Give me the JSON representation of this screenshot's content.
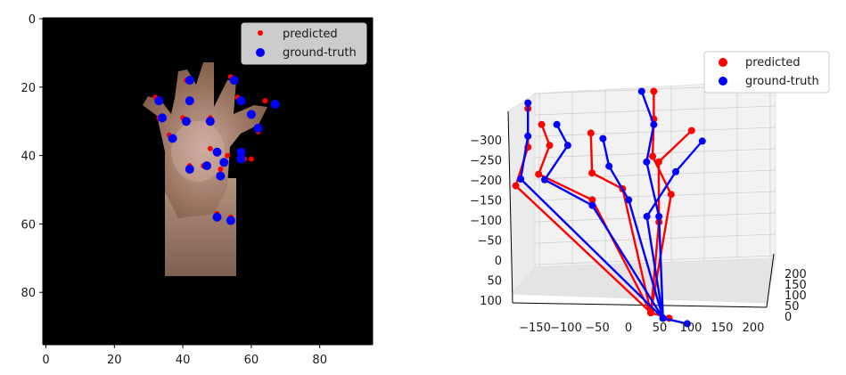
{
  "chart_data": [
    {
      "type": "scatter",
      "background": "image",
      "xlim": [
        0,
        95
      ],
      "ylim": [
        95,
        0
      ],
      "xticks": [
        "0",
        "20",
        "40",
        "60",
        "80"
      ],
      "yticks": [
        "0",
        "20",
        "40",
        "60",
        "80"
      ],
      "legend": {
        "placement": "top-right",
        "items": [
          {
            "label": "predicted",
            "color": "#ff0000"
          },
          {
            "label": "ground-truth",
            "color": "#0000ff"
          }
        ]
      },
      "series": [
        {
          "name": "predicted",
          "color": "#ff0000",
          "points": [
            [
              50,
              57
            ],
            [
              54,
              58
            ],
            [
              48,
              38
            ],
            [
              53,
              40
            ],
            [
              51,
              44
            ],
            [
              42,
              43
            ],
            [
              46,
              43
            ],
            [
              40,
              29
            ],
            [
              42,
              24
            ],
            [
              41,
              18
            ],
            [
              33,
              29
            ],
            [
              32,
              23
            ],
            [
              36,
              34
            ],
            [
              48,
              29
            ],
            [
              57,
              40
            ],
            [
              56,
              23
            ],
            [
              54,
              17
            ],
            [
              58,
              41
            ],
            [
              62,
              33
            ],
            [
              64,
              24
            ],
            [
              60,
              41
            ]
          ]
        },
        {
          "name": "ground-truth",
          "color": "#0000ff",
          "points": [
            [
              50,
              58
            ],
            [
              54,
              59
            ],
            [
              50,
              39
            ],
            [
              52,
              42
            ],
            [
              51,
              46
            ],
            [
              42,
              44
            ],
            [
              47,
              43
            ],
            [
              41,
              30
            ],
            [
              42,
              24
            ],
            [
              42,
              18
            ],
            [
              34,
              29
            ],
            [
              33,
              24
            ],
            [
              37,
              35
            ],
            [
              48,
              30
            ],
            [
              57,
              41
            ],
            [
              57,
              24
            ],
            [
              55,
              18
            ],
            [
              57,
              39
            ],
            [
              62,
              32
            ],
            [
              67,
              25
            ],
            [
              60,
              28
            ]
          ]
        }
      ]
    },
    {
      "type": "line",
      "projection": "3d",
      "xlim": [
        -190,
        210
      ],
      "ylim": [
        -20,
        230
      ],
      "zlim": [
        -340,
        105
      ],
      "xticks": [
        "−150",
        "−100",
        "−50",
        "0",
        "50",
        "100",
        "150",
        "200"
      ],
      "yticks": [
        "0",
        "50",
        "100",
        "150",
        "200"
      ],
      "zticks": [
        "−300",
        "−250",
        "−200",
        "−150",
        "−100",
        "−50",
        "0",
        "50",
        "100"
      ],
      "legend": {
        "placement": "top-right",
        "items": [
          {
            "label": "predicted",
            "color": "#ff0000"
          },
          {
            "label": "ground-truth",
            "color": "#0000ff"
          }
        ]
      },
      "series": [
        {
          "name": "predicted",
          "color": "#ff0000",
          "chains": [
            [
              [
                -30,
                170,
                90
              ],
              [
                -180,
                80,
                -160
              ],
              [
                -160,
                80,
                -230
              ],
              [
                -160,
                80,
                -300
              ]
            ],
            [
              [
                -30,
                170,
                90
              ],
              [
                -70,
                100,
                -130
              ],
              [
                -110,
                40,
                -190
              ],
              [
                -100,
                50,
                -240
              ],
              [
                -105,
                40,
                -280
              ]
            ],
            [
              [
                -30,
                170,
                90
              ],
              [
                -20,
                100,
                -150
              ],
              [
                -30,
                50,
                -190
              ],
              [
                -40,
                60,
                -260
              ]
            ],
            [
              [
                -30,
                170,
                90
              ],
              [
                60,
                100,
                -140
              ],
              [
                70,
                50,
                -220
              ],
              [
                80,
                40,
                -290
              ],
              [
                80,
                40,
                -340
              ]
            ],
            [
              [
                -30,
                170,
                90
              ],
              [
                40,
                100,
                -90
              ],
              [
                80,
                50,
                -210
              ],
              [
                110,
                80,
                -260
              ]
            ],
            [
              [
                -30,
                170,
                90
              ],
              [
                0,
                170,
                100
              ]
            ]
          ]
        },
        {
          "name": "ground-truth",
          "color": "#0000ff",
          "chains": [
            [
              [
                -10,
                170,
                100
              ],
              [
                -180,
                90,
                -170
              ],
              [
                -160,
                80,
                -250
              ],
              [
                -160,
                80,
                -310
              ]
            ],
            [
              [
                -10,
                170,
                100
              ],
              [
                -70,
                100,
                -120
              ],
              [
                -100,
                40,
                -180
              ],
              [
                -70,
                50,
                -240
              ],
              [
                -80,
                40,
                -280
              ]
            ],
            [
              [
                -10,
                170,
                100
              ],
              [
                -10,
                100,
                -130
              ],
              [
                -10,
                60,
                -200
              ],
              [
                -20,
                60,
                -250
              ]
            ],
            [
              [
                -10,
                170,
                100
              ],
              [
                40,
                100,
                -100
              ],
              [
                60,
                50,
                -210
              ],
              [
                80,
                40,
                -280
              ],
              [
                60,
                40,
                -340
              ]
            ],
            [
              [
                -10,
                170,
                100
              ],
              [
                20,
                100,
                -100
              ],
              [
                100,
                60,
                -190
              ],
              [
                160,
                40,
                -250
              ]
            ],
            [
              [
                -10,
                170,
                100
              ],
              [
                30,
                170,
                110
              ]
            ]
          ]
        }
      ]
    }
  ]
}
